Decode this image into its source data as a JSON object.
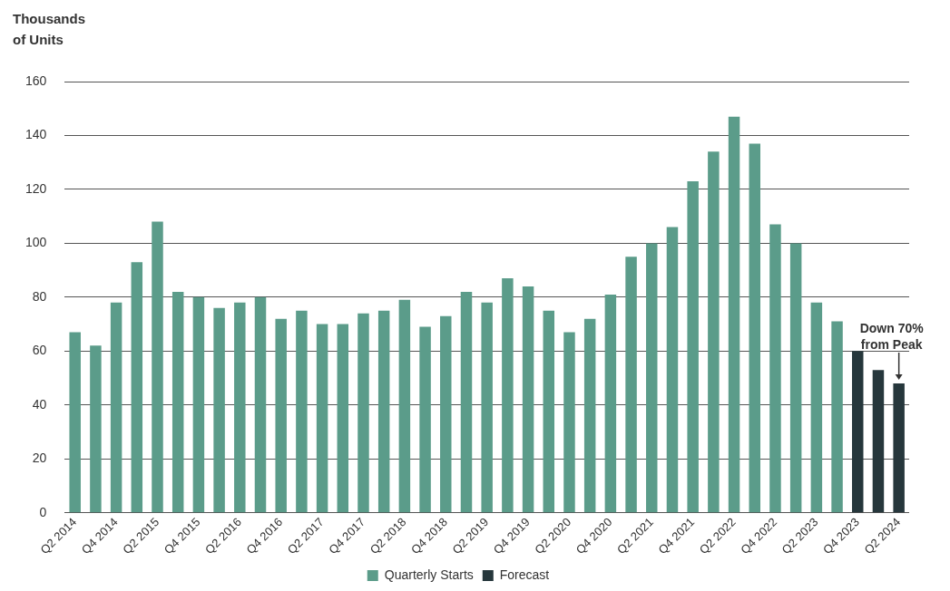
{
  "chart_data": {
    "type": "bar",
    "ylabel": "Thousands of Units",
    "categories": [
      "Q2 2014",
      null,
      "Q4 2014",
      null,
      "Q2 2015",
      null,
      "Q4 2015",
      null,
      "Q2 2016",
      null,
      "Q4 2016",
      null,
      "Q2 2017",
      null,
      "Q4 2017",
      null,
      "Q2 2018",
      null,
      "Q4 2018",
      null,
      "Q2 2019",
      null,
      "Q4 2019",
      null,
      "Q2 2020",
      null,
      "Q4 2020",
      null,
      "Q2 2021",
      null,
      "Q4 2021",
      null,
      "Q2 2022",
      null,
      "Q4 2022",
      null,
      "Q2 2023",
      null,
      "Q4 2023",
      null,
      "Q2 2024"
    ],
    "series": [
      {
        "name": "Quarterly Starts",
        "color": "#5b9c8a",
        "values": [
          67,
          62,
          78,
          93,
          108,
          82,
          80,
          76,
          78,
          80,
          72,
          75,
          70,
          70,
          74,
          75,
          79,
          69,
          73,
          82,
          78,
          87,
          84,
          75,
          67,
          72,
          81,
          95,
          100,
          106,
          123,
          134,
          147,
          137,
          107,
          100,
          78,
          71,
          null,
          null,
          null
        ]
      },
      {
        "name": "Forecast",
        "color": "#26373c",
        "values": [
          null,
          null,
          null,
          null,
          null,
          null,
          null,
          null,
          null,
          null,
          null,
          null,
          null,
          null,
          null,
          null,
          null,
          null,
          null,
          null,
          null,
          null,
          null,
          null,
          null,
          null,
          null,
          null,
          null,
          null,
          null,
          null,
          null,
          null,
          null,
          null,
          null,
          null,
          60,
          53,
          48
        ]
      }
    ],
    "ylim": [
      0,
      160
    ],
    "yticks": [
      0,
      20,
      40,
      60,
      80,
      100,
      120,
      140,
      160
    ],
    "grid": "y",
    "legend": "bottom",
    "annotations": [
      {
        "text": "Down 70% from Peak",
        "x": "Q2 2024",
        "y": 48
      }
    ]
  }
}
